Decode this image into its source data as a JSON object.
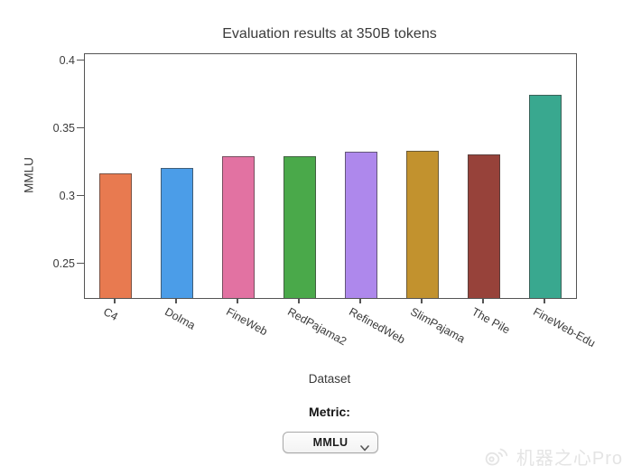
{
  "figure": {
    "title": "Evaluation results at 350B tokens"
  },
  "controls": {
    "metric_label": "Metric:",
    "metric_value": "MMLU"
  },
  "watermark": {
    "text": "机器之心Pro"
  },
  "chart_data": {
    "type": "bar",
    "title": "Evaluation results at 350B tokens",
    "xlabel": "Dataset",
    "ylabel": "MMLU",
    "categories": [
      "C4",
      "Dolma",
      "FineWeb",
      "RedPajama2",
      "RefinedWeb",
      "SlimPajama",
      "The Pile",
      "FineWeb-Edu"
    ],
    "values": [
      0.317,
      0.321,
      0.33,
      0.33,
      0.333,
      0.334,
      0.331,
      0.375
    ],
    "bar_colors": [
      "#e87a50",
      "#4b9de8",
      "#e272a2",
      "#4aa94a",
      "#ae88ec",
      "#c2922e",
      "#97423a",
      "#39a88f"
    ],
    "bar_edge_color": "#3c3c3c",
    "ylim": [
      0.225,
      0.405
    ],
    "yticks": [
      0.25,
      0.3,
      0.35,
      0.4
    ],
    "ytick_labels": [
      "0.25",
      "0.3",
      "0.35",
      "0.4"
    ],
    "xtick_rotation_deg": 29,
    "grid": false,
    "legend": "none"
  }
}
